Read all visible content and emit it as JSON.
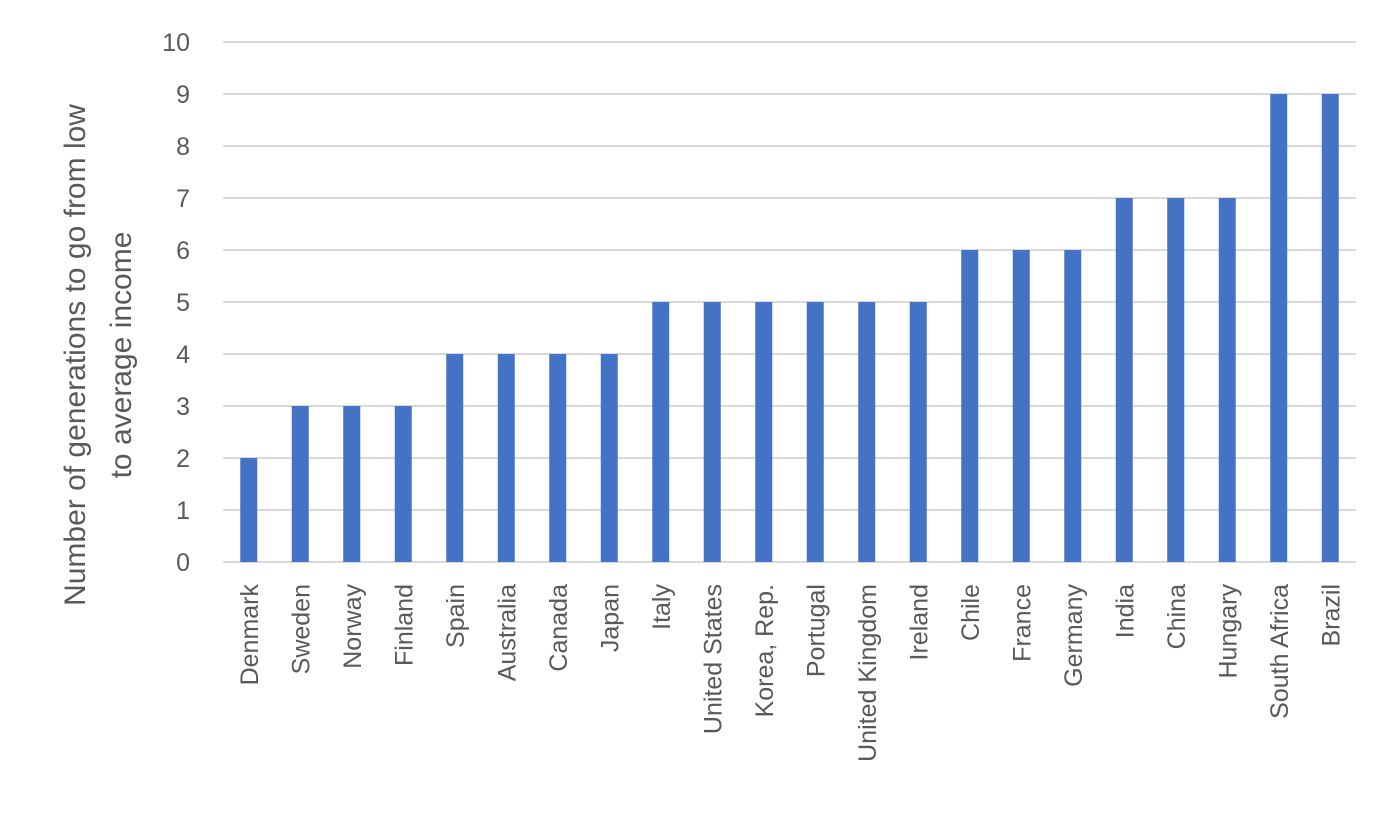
{
  "chart_data": {
    "type": "bar",
    "title": "",
    "xlabel": "",
    "ylabel_lines": [
      "Number of generations to go from low",
      "to average income"
    ],
    "ylim": [
      0,
      10
    ],
    "yticks": [
      0,
      1,
      2,
      3,
      4,
      5,
      6,
      7,
      8,
      9,
      10
    ],
    "grid": true,
    "legend": "none",
    "bar_color": "#4472c4",
    "categories": [
      "Denmark",
      "Sweden",
      "Norway",
      "Finland",
      "Spain",
      "Australia",
      "Canada",
      "Japan",
      "Italy",
      "United States",
      "Korea, Rep.",
      "Portugal",
      "United Kingdom",
      "Ireland",
      "Chile",
      "France",
      "Germany",
      "India",
      "China",
      "Hungary",
      "South Africa",
      "Brazil"
    ],
    "values": [
      2,
      3,
      3,
      3,
      4,
      4,
      4,
      4,
      5,
      5,
      5,
      5,
      5,
      5,
      6,
      6,
      6,
      7,
      7,
      7,
      9,
      9
    ]
  }
}
